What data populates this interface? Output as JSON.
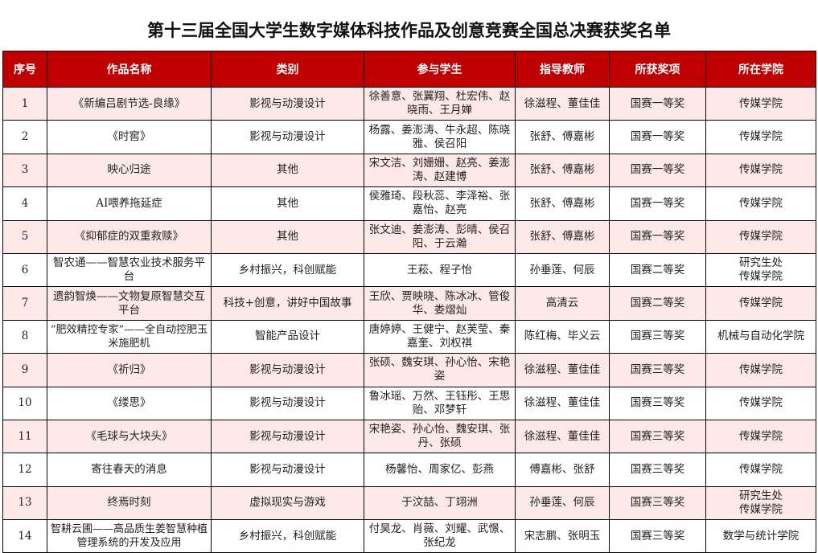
{
  "title": "第十三届全国大学生数字媒体科技作品及创意竞赛全国总决赛获奖名单",
  "columns": [
    "序号",
    "作品名称",
    "类别",
    "参与学生",
    "指导教师",
    "所获奖项",
    "所在学院"
  ],
  "colors": {
    "header_bg": "#c00000",
    "odd_row_bg": "#fde8e8"
  },
  "rows": [
    [
      "1",
      "《新编吕剧节选-良缘》",
      "影视与动漫设计",
      "徐善意、张翼翔、杜宏伟、赵晓雨、王月婵",
      "徐滋程、董佳佳",
      "国赛一等奖",
      "传媒学院"
    ],
    [
      "2",
      "《时窖》",
      "影视与动漫设计",
      "杨露、姜澎涛、牛永超、陈晓雅、侯召阳",
      "张舒、傅嘉彬",
      "国赛一等奖",
      "传媒学院"
    ],
    [
      "3",
      "映心归途",
      "其他",
      "宋文洁、刘姗姗、赵亮、姜澎涛、赵建博",
      "张舒、傅嘉彬",
      "国赛一等奖",
      "传媒学院"
    ],
    [
      "4",
      "AI喂养拖延症",
      "其他",
      "侯雅琦、段秋蕊、李泽裕、张嘉怡、赵亮",
      "张舒、傅嘉彬",
      "国赛一等奖",
      "传媒学院"
    ],
    [
      "5",
      "《抑郁症的双重救赎》",
      "其他",
      "张文迪、姜澎涛、彭晴、侯召阳、于云瀚",
      "张舒、傅嘉彬",
      "国赛一等奖",
      "传媒学院"
    ],
    [
      "6",
      "智农通——智慧农业技术服务平台",
      "乡村振兴，科创赋能",
      "王菘、程子怡",
      "孙垂莲、何辰",
      "国赛二等奖",
      "研究生处\n传媒学院"
    ],
    [
      "7",
      "遗韵智焕——文物复原智慧交互平台",
      "科技+创意，讲好中国故事",
      "王欣、贾映晓、陈冰冰、管俊华、娄熠灿",
      "高清云",
      "国赛二等奖",
      "传媒学院"
    ],
    [
      "8",
      "“肥效精控专家”——全自动控肥玉米施肥机",
      "智能产品设计",
      "唐婷婷、王健宁、赵芙莹、秦嘉奎、刘权祺",
      "陈红梅、毕义云",
      "国赛三等奖",
      "机械与自动化学院"
    ],
    [
      "9",
      "《祈归》",
      "影视与动漫设计",
      "张硕、魏安琪、孙心怡、宋艳姿",
      "徐滋程、董佳佳",
      "国赛三等奖",
      "传媒学院"
    ],
    [
      "10",
      "《缕思》",
      "影视与动漫设计",
      "鲁冰瑶、万然、王钰彤、王思贻、邓梦轩",
      "徐滋程、董佳佳",
      "国赛三等奖",
      "传媒学院"
    ],
    [
      "11",
      "《毛球与大块头》",
      "影视与动漫设计",
      "宋艳姿、孙心怡、魏安琪、张丹、张硕",
      "徐滋程、董佳佳",
      "国赛三等奖",
      "传媒学院"
    ],
    [
      "12",
      "寄往春天的消息",
      "影视与动漫设计",
      "杨馨怡、周家亿、彭燕",
      "傅嘉彬、张舒",
      "国赛三等奖",
      "传媒学院"
    ],
    [
      "13",
      "终焉时刻",
      "虚拟现实与游戏",
      "于汶喆、丁翊洲",
      "孙垂莲、何辰",
      "国赛三等奖",
      "研究生处\n传媒学院"
    ],
    [
      "14",
      "智耕云圃——高品质生姜智慧种植管理系统的开发及应用",
      "乡村振兴，科创赋能",
      "付昊龙、肖薇、刘耀、武憬、张纪龙",
      "宋志鹏、张明玉",
      "国赛三等奖",
      "数学与统计学院"
    ]
  ]
}
